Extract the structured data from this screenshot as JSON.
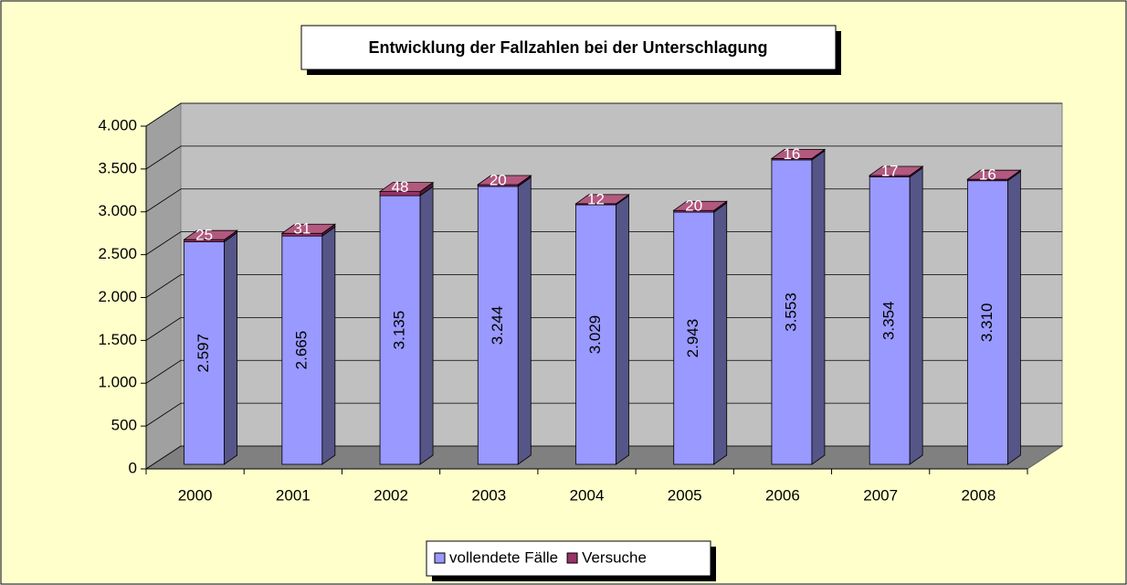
{
  "chart_data": {
    "type": "bar3d_stacked",
    "title": "Entwicklung der Fallzahlen bei der Unterschlagung",
    "categories": [
      "2000",
      "2001",
      "2002",
      "2003",
      "2004",
      "2005",
      "2006",
      "2007",
      "2008"
    ],
    "series": [
      {
        "name": "vollendete Fälle",
        "color": "#9999ff",
        "values": [
          2597,
          2665,
          3135,
          3244,
          3029,
          2943,
          3553,
          3354,
          3310
        ],
        "value_labels": [
          "2.597",
          "2.665",
          "3.135",
          "3.244",
          "3.029",
          "2.943",
          "3.553",
          "3.354",
          "3.310"
        ]
      },
      {
        "name": "Versuche",
        "color": "#993366",
        "values": [
          25,
          31,
          48,
          20,
          12,
          20,
          16,
          17,
          16
        ]
      }
    ],
    "ylim": [
      0,
      4000
    ],
    "yticks": [
      0,
      500,
      {
        "value": 1000,
        "label": "1.000"
      },
      {
        "value": 1500,
        "label": "1.500"
      },
      {
        "value": 2000,
        "label": "2.000"
      },
      {
        "value": 2500,
        "label": "2.500"
      },
      {
        "value": 3000,
        "label": "3.000"
      },
      {
        "value": 3500,
        "label": "3.500"
      },
      {
        "value": 4000,
        "label": "4.000"
      }
    ],
    "grid": true,
    "legend": "bottom"
  }
}
